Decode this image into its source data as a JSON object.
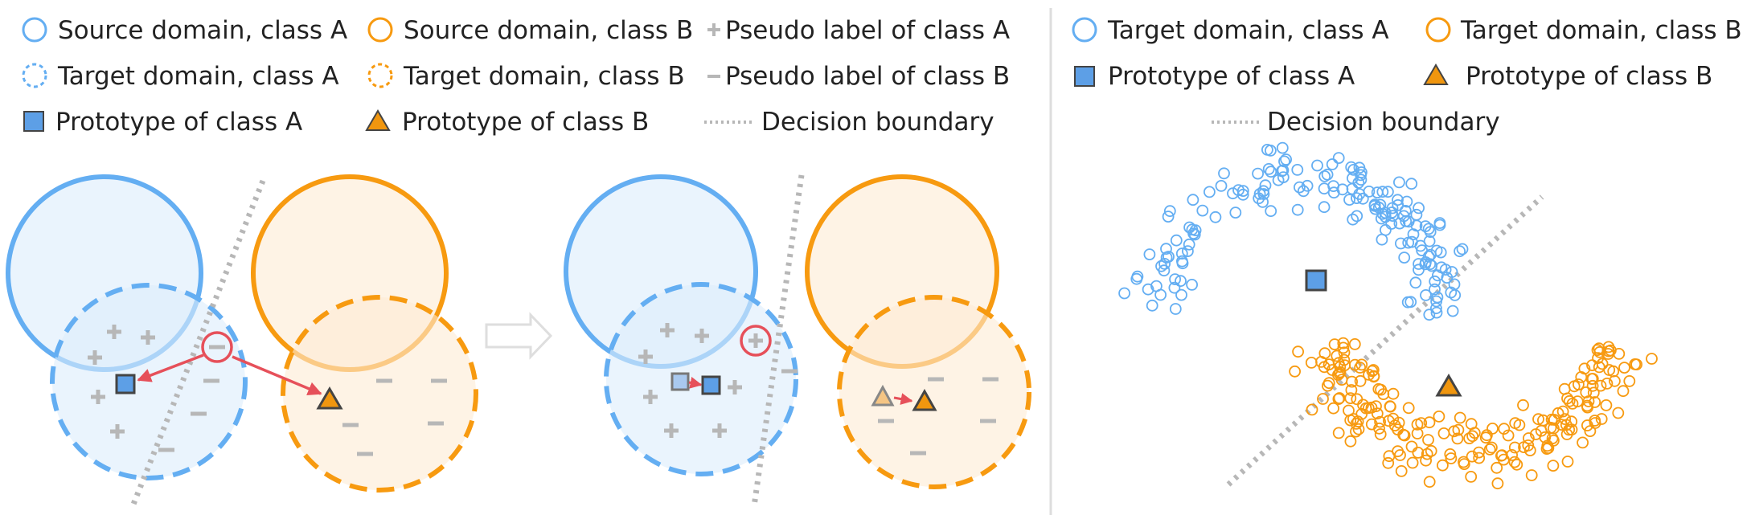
{
  "legend_left": {
    "source_a": "Source domain, class A",
    "source_b": "Source domain, class B",
    "pseudo_a": "Pseudo label of class A",
    "target_a": "Target domain, class A",
    "target_b": "Target domain, class B",
    "pseudo_b": "Pseudo label of class B",
    "proto_a": "Prototype of class A",
    "proto_b": "Prototype of class B",
    "boundary": "Decision boundary"
  },
  "legend_right": {
    "target_a": "Target domain, class A",
    "target_b": "Target domain, class B",
    "proto_a": "Prototype of class A",
    "proto_b": "Prototype of class B",
    "boundary": "Decision boundary"
  },
  "colors": {
    "class_a": "#64aef2",
    "class_b": "#f79a10",
    "class_a_fill": "#dcecfb",
    "class_b_fill": "#fdebd3",
    "pseudo": "#b7b7b7",
    "boundary": "#b7b7b7",
    "highlight": "#e6505a",
    "proto_a": "#5d9fe6",
    "proto_b": "#f0960f"
  },
  "icons": {
    "pseudo_a": "plus-icon",
    "pseudo_b": "minus-icon",
    "proto_a": "square-icon",
    "proto_b": "triangle-icon",
    "step": "arrow-right-icon"
  }
}
